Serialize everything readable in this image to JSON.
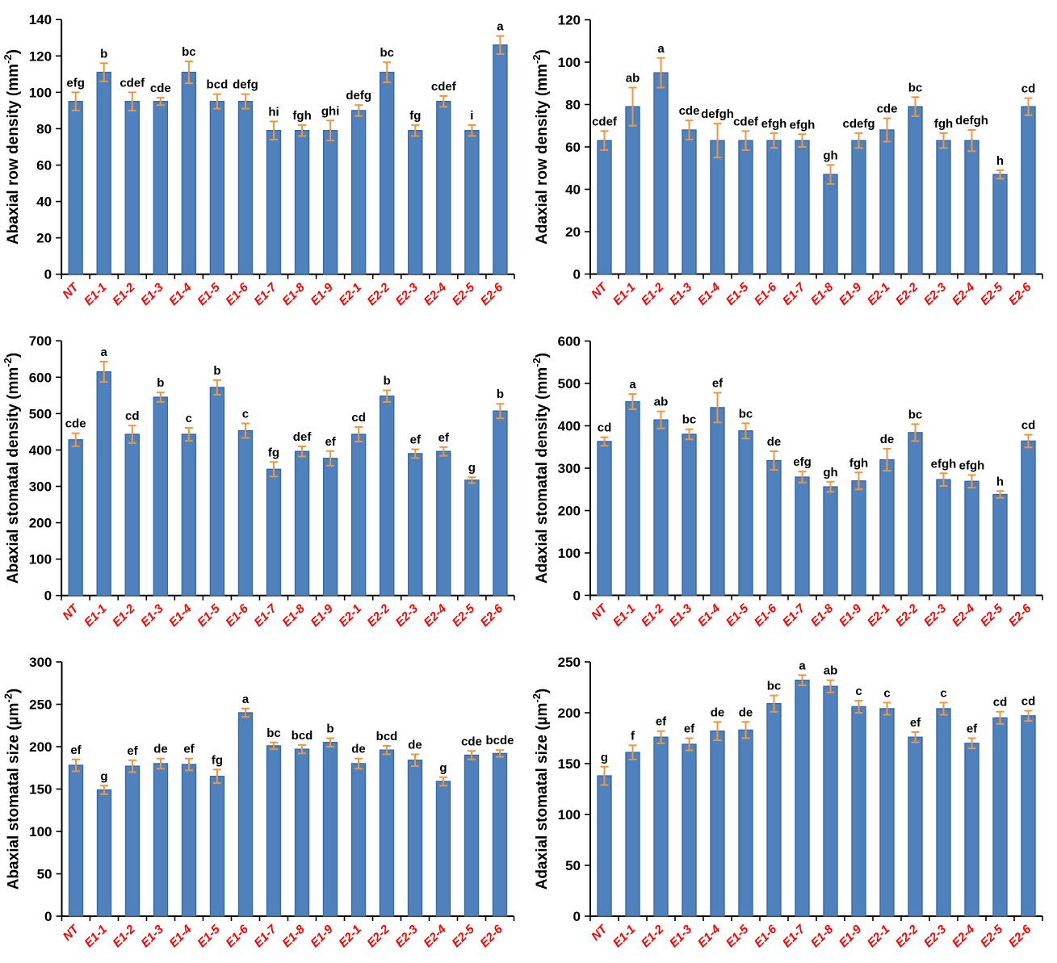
{
  "figure": {
    "background": "#FFFFFF",
    "bar_fill": "#4F81BD",
    "bar_stroke": "#3A67A5",
    "error_color": "#F0953F",
    "xlabel_color": "#FF0000",
    "axis_color": "#000000",
    "text_color": "#000000",
    "layout": "2-column by 3-row grid of bar charts, no gridlines, no legend"
  },
  "chart_data": [
    {
      "type": "bar",
      "panel": "abaxial-row-density",
      "ylabel_pre": "Abaxial row density (mm",
      "ylabel_sup": "-2",
      "ylabel_post": ")",
      "ylim": [
        0,
        140
      ],
      "ytick_step": 20,
      "grid": false,
      "legend": "none",
      "categories": [
        "NT",
        "E1-1",
        "E1-2",
        "E1-3",
        "E1-4",
        "E1-5",
        "E1-6",
        "E1-7",
        "E1-8",
        "E1-9",
        "E2-1",
        "E2-2",
        "E2-3",
        "E2-4",
        "E2-5",
        "E2-6"
      ],
      "values": [
        95,
        111,
        95,
        95,
        111,
        95,
        95,
        79,
        79,
        79,
        90,
        111,
        79,
        95,
        79,
        126
      ],
      "errors": [
        5,
        5,
        5,
        2,
        6,
        4,
        4,
        5,
        3,
        5.5,
        3,
        5.5,
        3,
        3,
        3,
        5
      ],
      "letters": [
        "efg",
        "b",
        "cdef",
        "cde",
        "bc",
        "bcd",
        "defg",
        "hi",
        "fgh",
        "ghi",
        "defg",
        "bc",
        "fg",
        "cdef",
        "i",
        "a"
      ]
    },
    {
      "type": "bar",
      "panel": "adaxial-row-density",
      "ylabel_pre": "Adaxial row density (mm",
      "ylabel_sup": "-2",
      "ylabel_post": ")",
      "ylim": [
        0,
        120
      ],
      "ytick_step": 20,
      "grid": false,
      "legend": "none",
      "categories": [
        "NT",
        "E1-1",
        "E1-2",
        "E1-3",
        "E1-4",
        "E1-5",
        "E1-6",
        "E1-7",
        "E1-8",
        "E1-9",
        "E2-1",
        "E2-2",
        "E2-3",
        "E2-4",
        "E2-5",
        "E2-6"
      ],
      "values": [
        63,
        79,
        95,
        68,
        63,
        63,
        63,
        63,
        47,
        63,
        68,
        79,
        63,
        63,
        47,
        79
      ],
      "errors": [
        4.5,
        9,
        7,
        4.5,
        8,
        4.5,
        3.5,
        3,
        4.5,
        3.5,
        5.5,
        4.5,
        3.5,
        5,
        2,
        4
      ],
      "letters": [
        "cdef",
        "ab",
        "a",
        "cde",
        "defgh",
        "cdef",
        "efgh",
        "efgh",
        "gh",
        "cdefg",
        "cde",
        "bc",
        "fgh",
        "defgh",
        "h",
        "cd"
      ]
    },
    {
      "type": "bar",
      "panel": "abaxial-stomatal-density",
      "ylabel_pre": "Abaxial stomatal density (mm",
      "ylabel_sup": "-2",
      "ylabel_post": ")",
      "ylim": [
        0,
        700
      ],
      "ytick_step": 100,
      "grid": false,
      "legend": "none",
      "categories": [
        "NT",
        "E1-1",
        "E1-2",
        "E1-3",
        "E1-4",
        "E1-5",
        "E1-6",
        "E1-7",
        "E1-8",
        "E1-9",
        "E2-1",
        "E2-2",
        "E2-3",
        "E2-4",
        "E2-5",
        "E2-6"
      ],
      "values": [
        428,
        615,
        443,
        545,
        443,
        572,
        453,
        347,
        396,
        377,
        443,
        548,
        390,
        396,
        317,
        507
      ],
      "errors": [
        18,
        28,
        24,
        13,
        18,
        20,
        20,
        20,
        14,
        20,
        20,
        16,
        12,
        12,
        8,
        20
      ],
      "letters": [
        "cde",
        "a",
        "cd",
        "b",
        "c",
        "b",
        "c",
        "fg",
        "def",
        "ef",
        "cd",
        "b",
        "ef",
        "ef",
        "g",
        "b"
      ]
    },
    {
      "type": "bar",
      "panel": "adaxial-stomatal-density",
      "ylabel_pre": "Adaxial stomatal density (mm",
      "ylabel_sup": "-2",
      "ylabel_post": ")",
      "ylim": [
        0,
        600
      ],
      "ytick_step": 100,
      "grid": false,
      "legend": "none",
      "categories": [
        "NT",
        "E1-1",
        "E1-2",
        "E1-3",
        "E1-4",
        "E1-5",
        "E1-6",
        "E1-7",
        "E1-8",
        "E1-9",
        "E2-1",
        "E2-2",
        "E2-3",
        "E2-4",
        "E2-5",
        "E2-6"
      ],
      "values": [
        363,
        457,
        414,
        380,
        443,
        388,
        318,
        279,
        256,
        270,
        320,
        384,
        273,
        269,
        238,
        364
      ],
      "errors": [
        10,
        18,
        20,
        12,
        35,
        18,
        22,
        13,
        12,
        20,
        26,
        20,
        15,
        15,
        8,
        15
      ],
      "letters": [
        "cd",
        "a",
        "ab",
        "bc",
        "ef",
        "bc",
        "de",
        "efg",
        "gh",
        "fgh",
        "de",
        "bc",
        "efgh",
        "efgh",
        "h",
        "cd"
      ]
    },
    {
      "type": "bar",
      "panel": "abaxial-stomatal-size",
      "ylabel_pre": "Abaxial stomatal size (µm",
      "ylabel_sup": "-2",
      "ylabel_post": ")",
      "ylim": [
        0,
        300
      ],
      "ytick_step": 50,
      "grid": false,
      "legend": "none",
      "categories": [
        "NT",
        "E1-1",
        "E1-2",
        "E1-3",
        "E1-4",
        "E1-5",
        "E1-6",
        "E1-7",
        "E1-8",
        "E1-9",
        "E2-1",
        "E2-2",
        "E2-3",
        "E2-4",
        "E2-5",
        "E2-6"
      ],
      "values": [
        178,
        149,
        177,
        180,
        179,
        165,
        240,
        201,
        197,
        205,
        180,
        196,
        184,
        159,
        190,
        192
      ],
      "errors": [
        7,
        5,
        7,
        6,
        7,
        8,
        5,
        4,
        5,
        5,
        6,
        5,
        7,
        5,
        5,
        4
      ],
      "letters": [
        "ef",
        "g",
        "ef",
        "de",
        "ef",
        "fg",
        "a",
        "bc",
        "bcd",
        "b",
        "de",
        "bcd",
        "de",
        "g",
        "cde",
        "bcde"
      ]
    },
    {
      "type": "bar",
      "panel": "adaxial-stomatal-size",
      "ylabel_pre": "Adaxial stomatal size (µm",
      "ylabel_sup": "-2",
      "ylabel_post": ")",
      "ylim": [
        0,
        250
      ],
      "ytick_step": 50,
      "grid": false,
      "legend": "none",
      "categories": [
        "NT",
        "E1-1",
        "E1-2",
        "E1-3",
        "E1-4",
        "E1-5",
        "E1-6",
        "E1-7",
        "E1-8",
        "E1-9",
        "E2-1",
        "E2-2",
        "E2-3",
        "E2-4",
        "E2-5",
        "E2-6"
      ],
      "values": [
        138,
        161,
        176,
        169,
        182,
        183,
        209,
        232,
        226,
        206,
        204,
        176,
        204,
        170,
        195,
        197
      ],
      "errors": [
        9,
        7,
        6,
        6,
        9,
        8,
        8,
        5,
        6,
        6,
        6,
        5,
        6,
        5,
        6,
        5
      ],
      "letters": [
        "g",
        "f",
        "ef",
        "ef",
        "de",
        "de",
        "bc",
        "a",
        "ab",
        "c",
        "c",
        "ef",
        "c",
        "ef",
        "cd",
        "cd"
      ]
    }
  ]
}
